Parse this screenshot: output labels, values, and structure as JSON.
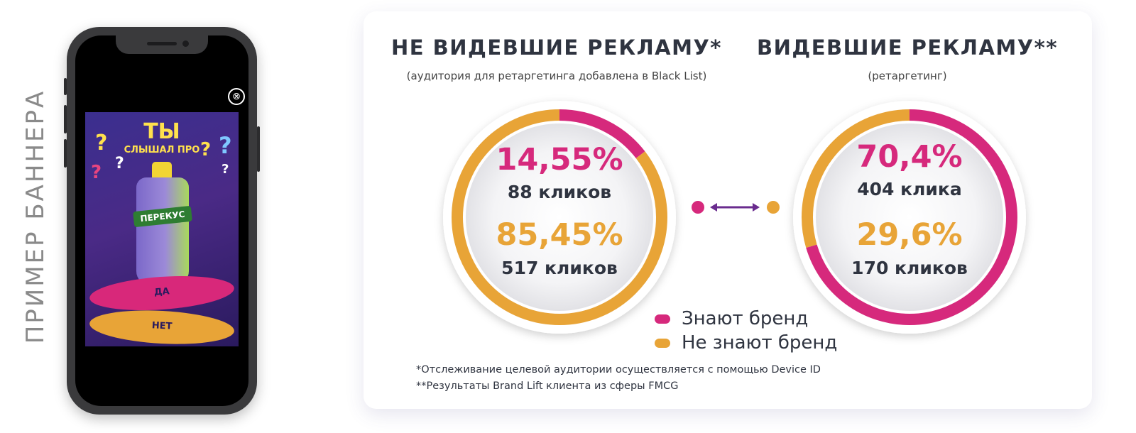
{
  "side_label": "ПРИМЕР БАННЕРА",
  "banner": {
    "title": "ТЫ",
    "subtitle": "СЛЫШАЛ ПРО",
    "product": "ПЕРЕКУС",
    "yes_label": "ДА",
    "no_label": "НЕТ",
    "close_symbol": "⊗"
  },
  "colors": {
    "knows": "#d6297c",
    "not_knows": "#e8a437",
    "connector": "#6a2c8e"
  },
  "chart_data": [
    {
      "type": "pie",
      "title": "НЕ ВИДЕВШИЕ РЕКЛАМУ*",
      "subtitle": "(аудитория для ретаргетинга добавлена в Black List)",
      "slices": [
        {
          "name": "Знают бренд",
          "value": 14.55,
          "label": "14,55%",
          "count_label": "88 кликов"
        },
        {
          "name": "Не знают бренд",
          "value": 85.45,
          "label": "85,45%",
          "count_label": "517 кликов"
        }
      ]
    },
    {
      "type": "pie",
      "title": "ВИДЕВШИЕ РЕКЛАМУ**",
      "subtitle": "(ретаргетинг)",
      "slices": [
        {
          "name": "Знают бренд",
          "value": 70.4,
          "label": "70,4%",
          "count_label": "404 клика"
        },
        {
          "name": "Не знают бренд",
          "value": 29.6,
          "label": "29,6%",
          "count_label": "170 кликов"
        }
      ]
    }
  ],
  "legend": [
    "Знают бренд",
    "Не знают бренд"
  ],
  "footnotes": [
    "*Отслеживание целевой аудитории осуществляется с помощью Device ID",
    "**Результаты Brand Lift клиента из сферы FMCG"
  ]
}
